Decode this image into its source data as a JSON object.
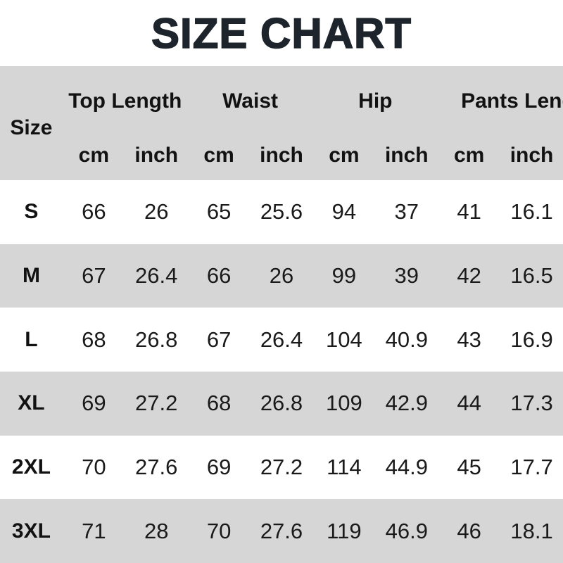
{
  "colors": {
    "header_bg": "#d6d6d6",
    "stripe_bg": "#d6d6d6",
    "row_bg": "#ffffff",
    "title_color": "#1d242c",
    "text_color": "#161616"
  },
  "chart_data": {
    "type": "table",
    "title": "SIZE CHART",
    "row_header": "Size",
    "column_groups": [
      {
        "label": "Top Length"
      },
      {
        "label": "Waist"
      },
      {
        "label": "Hip"
      },
      {
        "label": "Pants Length"
      }
    ],
    "units": [
      "cm",
      "inch",
      "cm",
      "inch",
      "cm",
      "inch",
      "cm",
      "inch"
    ],
    "rows": [
      {
        "size": "S",
        "values": [
          66,
          26,
          65,
          25.6,
          94,
          37,
          41,
          16.1
        ]
      },
      {
        "size": "M",
        "values": [
          67,
          26.4,
          66,
          26,
          99,
          39,
          42,
          16.5
        ]
      },
      {
        "size": "L",
        "values": [
          68,
          26.8,
          67,
          26.4,
          104,
          40.9,
          43,
          16.9
        ]
      },
      {
        "size": "XL",
        "values": [
          69,
          27.2,
          68,
          26.8,
          109,
          42.9,
          44,
          17.3
        ]
      },
      {
        "size": "2XL",
        "values": [
          70,
          27.6,
          69,
          27.2,
          114,
          44.9,
          45,
          17.7
        ]
      },
      {
        "size": "3XL",
        "values": [
          71,
          28,
          70,
          27.6,
          119,
          46.9,
          46,
          18.1
        ]
      }
    ]
  }
}
